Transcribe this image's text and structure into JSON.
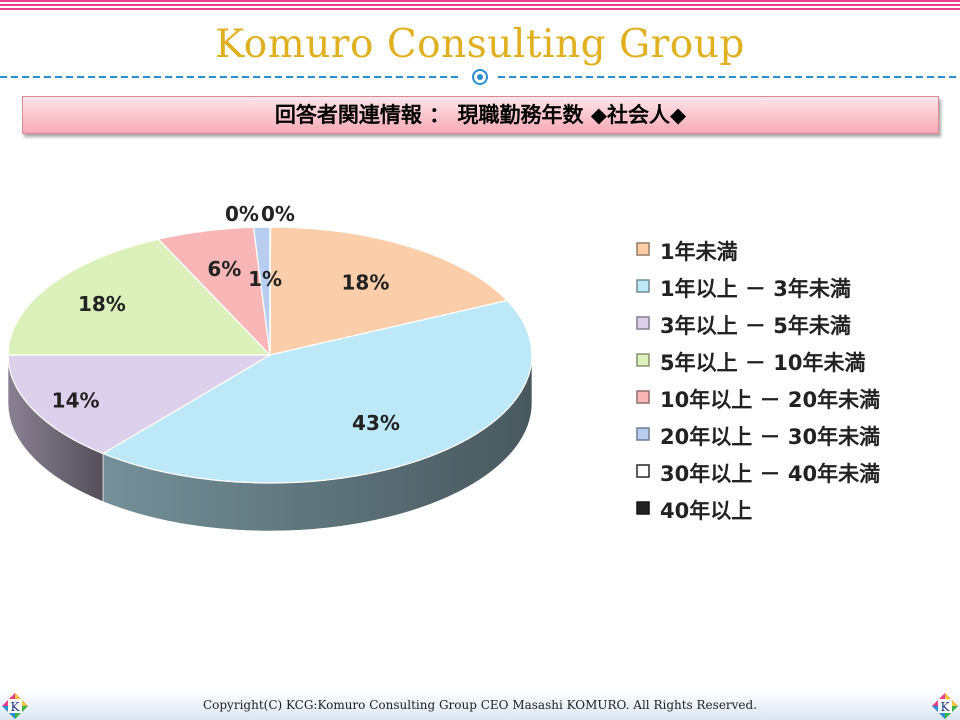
{
  "header": {
    "brand": "Komuro Consulting Group"
  },
  "section": {
    "title": "回答者関連情報 ： 現職勤務年数 ◆社会人◆"
  },
  "chart_data": {
    "type": "pie",
    "categories": [
      "1年未満",
      "1年以上 － 3年未満",
      "3年以上 － 5年未満",
      "5年以上 － 10年未満",
      "10年以上 － 20年未満",
      "20年以上 － 30年未満",
      "30年以上 － 40年未満",
      "40年以上"
    ],
    "values": [
      18,
      43,
      14,
      18,
      6,
      1,
      0,
      0
    ],
    "labels": [
      "18%",
      "43%",
      "14%",
      "18%",
      "6%",
      "1%",
      "0%",
      "0%"
    ],
    "colors": [
      "#fbcda8",
      "#bde8f7",
      "#ddd0ec",
      "#dcf0bc",
      "#f8b6b6",
      "#b9cdf0",
      "#ffffff",
      "#222222"
    ],
    "legend_position": "right"
  },
  "footer": {
    "copyright": "Copyright(C)  KCG:Komuro Consulting Group  CEO Masashi KOMURO. All Rights Reserved.",
    "logo_letter": "K"
  }
}
